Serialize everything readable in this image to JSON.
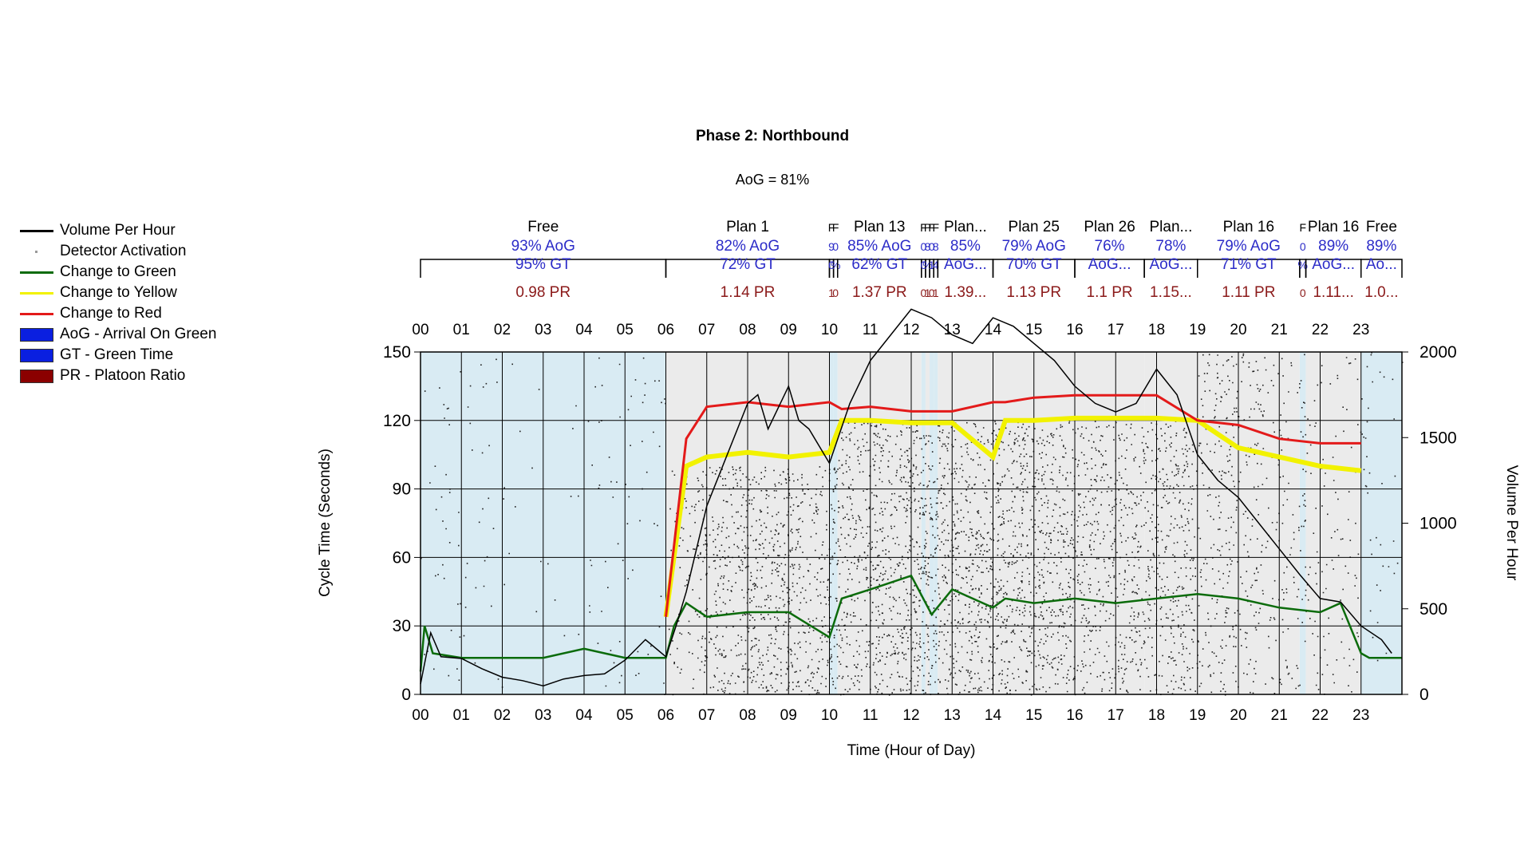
{
  "legend": {
    "items": [
      {
        "label": "Volume Per Hour",
        "kind": "line",
        "color": "#000000"
      },
      {
        "label": "Detector Activation",
        "kind": "dot",
        "color": "#999999"
      },
      {
        "label": "Change to Green",
        "kind": "line",
        "color": "#0b6b0b"
      },
      {
        "label": "Change to Yellow",
        "kind": "line",
        "color": "#f2f200"
      },
      {
        "label": "Change to Red",
        "kind": "line",
        "color": "#e31a1a"
      },
      {
        "label": "AoG - Arrival On Green",
        "kind": "box",
        "color": "#0a1fe0"
      },
      {
        "label": "GT - Green Time",
        "kind": "box",
        "color": "#0a1fe0"
      },
      {
        "label": "PR - Platoon Ratio",
        "kind": "box",
        "color": "#8b0000"
      }
    ]
  },
  "chart_data": {
    "type": "scatter",
    "title": "Phase 2: Northbound",
    "subtitle": "AoG = 81%",
    "xlabel": "Time (Hour of Day)",
    "ylabel": "Cycle Time (Seconds)",
    "y2label": "Volume Per Hour",
    "xlim": [
      0,
      24
    ],
    "ylim": [
      0,
      150
    ],
    "y2lim": [
      0,
      2000
    ],
    "x_ticks": [
      "00",
      "01",
      "02",
      "03",
      "04",
      "05",
      "06",
      "07",
      "08",
      "09",
      "10",
      "11",
      "12",
      "13",
      "14",
      "15",
      "16",
      "17",
      "18",
      "19",
      "20",
      "21",
      "22",
      "23"
    ],
    "y_ticks": [
      0,
      30,
      60,
      90,
      120,
      150
    ],
    "y2_ticks": [
      0,
      500,
      1000,
      1500,
      2000
    ],
    "grid": true,
    "legend_position": "left",
    "colors": {
      "free_band": "#d9ebf3",
      "plan_band": "#ebebeb",
      "green": "#0b6b0b",
      "yellow": "#f2f200",
      "red": "#e31a1a",
      "aog_text": "#2c2cc8",
      "pr_text": "#8b1a1a"
    },
    "plans": [
      {
        "label": "Free",
        "start": 0,
        "end": 6,
        "aog": "93% AoG",
        "gt": "95% GT",
        "pr": "0.98 PR"
      },
      {
        "label": "Plan 1",
        "start": 6,
        "end": 10,
        "aog": "82% AoG",
        "gt": "72% GT",
        "pr": "1.14 PR"
      },
      {
        "label": "F",
        "start": 10,
        "end": 10.1,
        "aog": "9",
        "gt": "0",
        "pr": "1"
      },
      {
        "label": "F",
        "start": 10.1,
        "end": 10.2,
        "aog": "0",
        "gt": "%",
        "pr": "0"
      },
      {
        "label": "Plan 13",
        "start": 10.2,
        "end": 12.25,
        "aog": "85% AoG",
        "gt": "62% GT",
        "pr": "1.37 PR"
      },
      {
        "label": "F",
        "start": 12.25,
        "end": 12.35,
        "aog": "0",
        "gt": "0",
        "pr": "0"
      },
      {
        "label": "P",
        "start": 12.35,
        "end": 12.45,
        "aog": "8",
        "gt": "%",
        "pr": "1"
      },
      {
        "label": "F",
        "start": 12.45,
        "end": 12.55,
        "aog": "0",
        "gt": "1",
        "pr": "0"
      },
      {
        "label": "F",
        "start": 12.55,
        "end": 12.65,
        "aog": "8",
        "gt": "4",
        "pr": "1"
      },
      {
        "label": "Plan...",
        "start": 12.65,
        "end": 14,
        "aog": "85%",
        "gt": "AoG...",
        "pr": "1.39..."
      },
      {
        "label": "Plan 25",
        "start": 14,
        "end": 16,
        "aog": "79% AoG",
        "gt": "70% GT",
        "pr": "1.13 PR"
      },
      {
        "label": "Plan 26",
        "start": 16,
        "end": 17.7,
        "aog": "76%",
        "gt": "AoG...",
        "pr": "1.1 PR"
      },
      {
        "label": "Plan...",
        "start": 17.7,
        "end": 19,
        "aog": "78%",
        "gt": "AoG...",
        "pr": "1.15..."
      },
      {
        "label": "Plan 16",
        "start": 19,
        "end": 21.5,
        "aog": "79% AoG",
        "gt": "71% GT",
        "pr": "1.11 PR"
      },
      {
        "label": "F",
        "start": 21.5,
        "end": 21.65,
        "aog": "0",
        "gt": "%",
        "pr": "0"
      },
      {
        "label": "Plan 16",
        "start": 21.65,
        "end": 23,
        "aog": "89%",
        "gt": "AoG...",
        "pr": "1.11..."
      },
      {
        "label": "Free",
        "start": 23,
        "end": 24,
        "aog": "89%",
        "gt": "Ao...",
        "pr": "1.0..."
      }
    ],
    "volume_series": {
      "name": "Volume Per Hour",
      "x": [
        0,
        0.25,
        0.5,
        1,
        1.5,
        2,
        2.5,
        3,
        3.5,
        4,
        4.5,
        5,
        5.5,
        6,
        6.25,
        6.5,
        7,
        7.5,
        8,
        8.25,
        8.5,
        9,
        9.25,
        9.5,
        10,
        10.5,
        11,
        11.5,
        12,
        12.5,
        13,
        13.5,
        14,
        14.5,
        15,
        15.5,
        16,
        16.5,
        17,
        17.5,
        18,
        18.5,
        19,
        19.5,
        20,
        20.5,
        21,
        21.5,
        22,
        22.5,
        23,
        23.5,
        23.75
      ],
      "values": [
        60,
        360,
        220,
        210,
        150,
        100,
        80,
        50,
        90,
        110,
        120,
        200,
        320,
        220,
        400,
        600,
        1100,
        1400,
        1700,
        1750,
        1550,
        1800,
        1600,
        1550,
        1350,
        1700,
        1950,
        2100,
        2250,
        2200,
        2100,
        2050,
        2200,
        2150,
        2050,
        1950,
        1800,
        1700,
        1650,
        1700,
        1900,
        1750,
        1400,
        1250,
        1150,
        1000,
        850,
        700,
        560,
        540,
        400,
        320,
        240
      ]
    },
    "change_to_green_series": {
      "name": "Change to Green",
      "x": [
        0,
        0.1,
        0.3,
        1,
        2,
        3,
        4,
        5,
        6,
        6.2,
        6.5,
        7,
        8,
        9,
        10,
        10.3,
        11,
        12,
        12.5,
        13,
        14,
        14.3,
        15,
        16,
        17,
        18,
        19,
        20,
        21,
        22,
        22.5,
        23,
        23.2,
        24
      ],
      "values": [
        10,
        30,
        18,
        16,
        16,
        16,
        20,
        16,
        16,
        30,
        40,
        34,
        36,
        36,
        25,
        42,
        46,
        52,
        35,
        46,
        38,
        42,
        40,
        42,
        40,
        42,
        44,
        42,
        38,
        36,
        40,
        18,
        16,
        16
      ]
    },
    "change_to_yellow_series": {
      "name": "Change to Yellow",
      "x": [
        6,
        6.5,
        7,
        8,
        9,
        10,
        10.3,
        11,
        12,
        13,
        14,
        14.3,
        15,
        16,
        17,
        18,
        19,
        20,
        21,
        22,
        23
      ],
      "values": [
        34,
        100,
        104,
        106,
        104,
        106,
        120,
        120,
        119,
        119,
        104,
        120,
        120,
        121,
        121,
        121,
        120,
        108,
        104,
        100,
        98
      ]
    },
    "change_to_red_series": {
      "name": "Change to Red",
      "x": [
        6,
        6.5,
        7,
        8,
        9,
        10,
        10.3,
        11,
        12,
        13,
        14,
        14.3,
        15,
        16,
        17,
        18,
        19,
        20,
        21,
        22,
        23
      ],
      "values": [
        34,
        112,
        126,
        128,
        126,
        128,
        125,
        126,
        124,
        124,
        128,
        128,
        130,
        131,
        131,
        131,
        120,
        118,
        112,
        110,
        110
      ]
    }
  }
}
